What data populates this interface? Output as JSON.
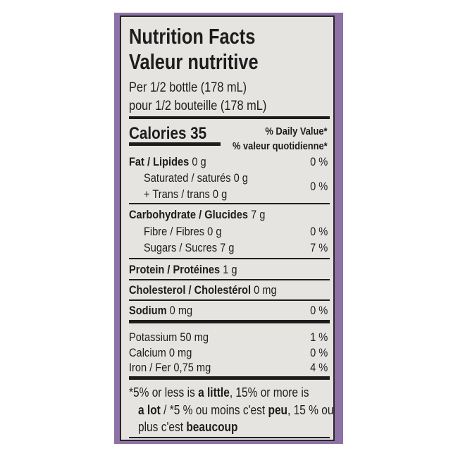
{
  "title_en": "Nutrition Facts",
  "title_fr": "Valeur nutritive",
  "serving_en": "Per 1/2 bottle (178 mL)",
  "serving_fr": "pour 1/2 bouteille (178 mL)",
  "calories_label": "Calories 35",
  "dv_en": "% Daily Value*",
  "dv_fr": "% valeur quotidienne*",
  "rows": [
    {
      "bold": "Fat / Lipides",
      "rest": " 0 g",
      "dv": "0 %"
    },
    {
      "bold": "",
      "rest": "Saturated / saturés 0 g",
      "dv": "0 %"
    },
    {
      "bold": "",
      "rest": "+ Trans / trans 0 g",
      "dv": ""
    },
    {
      "bold": "Carbohydrate / Glucides",
      "rest": " 7 g",
      "dv": ""
    },
    {
      "bold": "",
      "rest": "Fibre / Fibres 0 g",
      "dv": "0 %"
    },
    {
      "bold": "",
      "rest": "Sugars / Sucres 7 g",
      "dv": "7 %"
    },
    {
      "bold": "Protein / Protéines",
      "rest": " 1 g",
      "dv": ""
    },
    {
      "bold": "Cholesterol / Cholestérol",
      "rest": " 0 mg",
      "dv": ""
    },
    {
      "bold": "Sodium",
      "rest": " 0 mg",
      "dv": "0 %"
    },
    {
      "bold": "",
      "rest": "Potassium 50 mg",
      "dv": "1 %"
    },
    {
      "bold": "",
      "rest": "Calcium 0 mg",
      "dv": "0 %"
    },
    {
      "bold": "",
      "rest": "Iron / Fer 0,75 mg",
      "dv": "4 %"
    }
  ],
  "footnote": {
    "p1": "*5% or less is ",
    "b1": "a little",
    "p2": ", 15% or more is",
    "b2": "a lot",
    "p3": " / *5 % ou moins c'est ",
    "b3": "peu",
    "p4": ", 15 % ou",
    "p5": "plus c'est ",
    "b4": "beaucoup"
  },
  "colors": {
    "border": "#8e72a6",
    "label_bg": "#e6e4e1",
    "ink": "#1e1c1c"
  }
}
